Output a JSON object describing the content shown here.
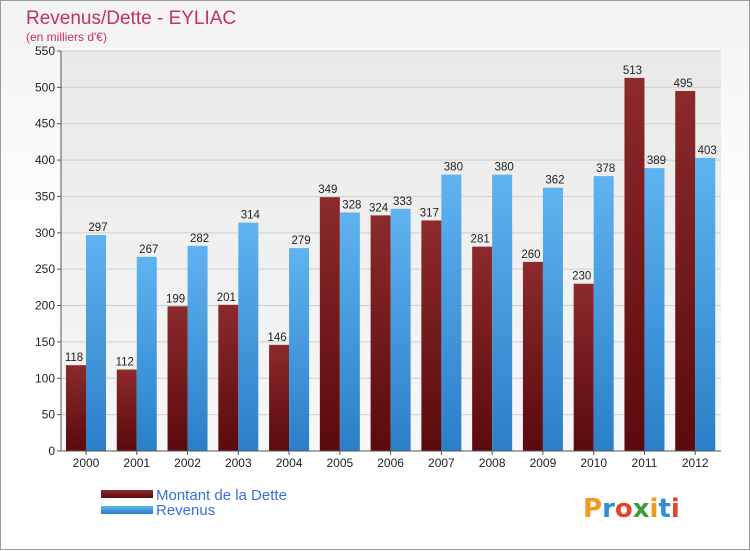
{
  "chart_data": {
    "type": "bar",
    "title": "Revenus/Dette - EYLIAC",
    "subtitle": "(en milliers d'€)",
    "categories": [
      "2000",
      "2001",
      "2002",
      "2003",
      "2004",
      "2005",
      "2006",
      "2007",
      "2008",
      "2009",
      "2010",
      "2011",
      "2012"
    ],
    "series": [
      {
        "name": "Montant de la Dette",
        "color": "#7a1c1e",
        "values": [
          118,
          112,
          199,
          201,
          146,
          349,
          324,
          317,
          281,
          260,
          230,
          513,
          495
        ]
      },
      {
        "name": "Revenus",
        "color": "#4da3e6",
        "values": [
          297,
          267,
          282,
          314,
          279,
          328,
          333,
          380,
          380,
          362,
          378,
          389,
          403
        ]
      }
    ],
    "ylim": [
      0,
      550
    ],
    "yticks": [
      0,
      50,
      100,
      150,
      200,
      250,
      300,
      350,
      400,
      450,
      500,
      550
    ],
    "grid": true,
    "legend_position": "bottom-left"
  },
  "logo": {
    "text": "Proxiti"
  }
}
